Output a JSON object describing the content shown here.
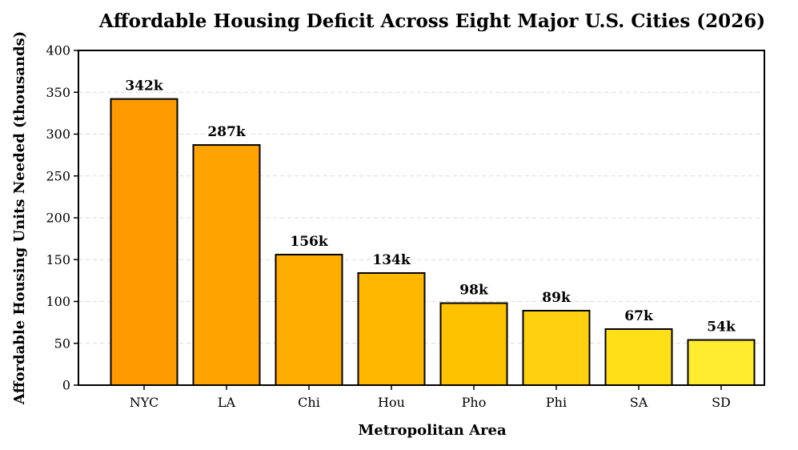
{
  "chart_data": {
    "type": "bar",
    "title": "Affordable Housing Deficit Across Eight Major U.S. Cities (2026)",
    "xlabel": "Metropolitan Area",
    "ylabel": "Affordable Housing Units Needed (thousands)",
    "categories": [
      "NYC",
      "LA",
      "Chi",
      "Hou",
      "Pho",
      "Phi",
      "SA",
      "SD"
    ],
    "values": [
      342,
      287,
      156,
      134,
      98,
      89,
      67,
      54
    ],
    "data_labels": [
      "342k",
      "287k",
      "156k",
      "134k",
      "98k",
      "89k",
      "67k",
      "54k"
    ],
    "ylim": [
      0,
      400
    ],
    "yticks": [
      0,
      50,
      100,
      150,
      200,
      250,
      300,
      350,
      400
    ],
    "grid": true,
    "colors": [
      "#ff9a00",
      "#ffa300",
      "#ffad00",
      "#ffb700",
      "#ffc200",
      "#ffd00f",
      "#ffdf17",
      "#ffec2e"
    ]
  }
}
